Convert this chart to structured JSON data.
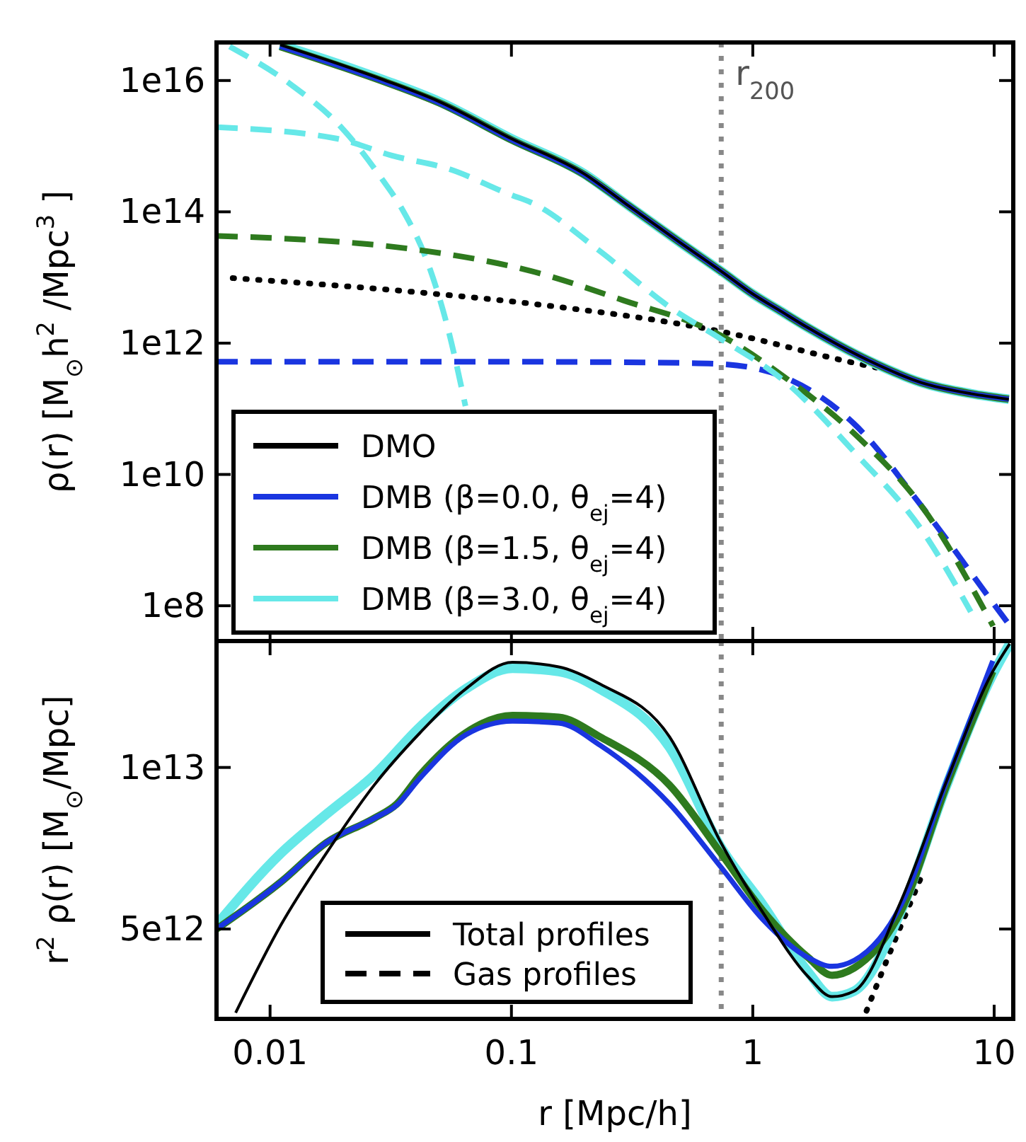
{
  "chart_data": [
    {
      "type": "line",
      "ylabel": "ρ(r)  [M$_{⊙}$h$^{2}$ /Mpc$^{3}$ ]",
      "log": "xy",
      "xlim": [
        0.006,
        12
      ],
      "ylim": [
        29000000.0,
        3.8e+16
      ],
      "xticks": [
        0.01,
        0.1,
        1,
        10
      ],
      "yticks": [
        {
          "value": 100000000.0,
          "label": "1e8"
        },
        {
          "value": 10000000000.0,
          "label": "1e10"
        },
        {
          "value": 1000000000000.0,
          "label": "1e12"
        },
        {
          "value": 100000000000000.0,
          "label": "1e14"
        },
        {
          "value": 1e+16,
          "label": "1e16"
        }
      ],
      "tick_labels": "y",
      "legend": "bottom left",
      "grid": false,
      "ref_lines": [
        {
          "axis": "x",
          "value": 0.74,
          "label": "r$_{200}$",
          "color": "#888888",
          "line_style": "dotted"
        }
      ],
      "series": [
        {
          "color": "#000000",
          "line_style": "dotted",
          "x": [
            0.007,
            0.042,
            0.12,
            0.74,
            2.63,
            3.9
          ],
          "values": [
            9800000000000.0,
            5900000000000.0,
            4000000000000.0,
            1500000000000.0,
            500000000000.0,
            370000000000.0
          ]
        },
        {
          "color": "#66e8e8",
          "line_style": "dashed",
          "x": [
            0.0068,
            0.0122,
            0.0197,
            0.0292,
            0.035,
            0.0458,
            0.0545,
            0.0645
          ],
          "values": [
            3.3e+16,
            8700000000000000.0,
            1950000000000000.0,
            310000000000000.0,
            115000000000000.0,
            14000000000000.0,
            1700000000000.0,
            110000000000.0
          ]
        },
        {
          "color": "#1a35e0",
          "line_style": "dashed",
          "x": [
            0.006,
            0.1,
            0.5,
            0.74,
            1.36,
            2.63,
            5.1,
            9.9,
            11.6
          ],
          "values": [
            520000000000.0,
            520000000000.0,
            500000000000.0,
            480000000000.0,
            300000000000.0,
            59000000000.0,
            3000000000.0,
            110000000.0,
            50000000.0
          ]
        },
        {
          "color": "#2e7a1e",
          "line_style": "dashed",
          "x": [
            0.006,
            0.042,
            0.12,
            0.29,
            0.74,
            1.36,
            2.63,
            5.1,
            9.9
          ],
          "values": [
            43000000000000.0,
            26000000000000.0,
            12600000000000.0,
            4500000000000.0,
            1300000000000.0,
            300000000000.0,
            42000000000.0,
            3000000000.0,
            49000000.0
          ]
        },
        {
          "color": "#66e8e8",
          "line_style": "dashed",
          "x": [
            0.006,
            0.019,
            0.032,
            0.055,
            0.1,
            0.12,
            0.23,
            0.45,
            0.74,
            1.36,
            2.63,
            5.1,
            8
          ],
          "values": [
            1950000000000000.0,
            1300000000000000.0,
            720000000000000.0,
            450000000000000.0,
            180000000000000.0,
            140000000000000.0,
            26000000000000.0,
            3600000000000.0,
            1150000000000.0,
            260000000000.0,
            22000000000.0,
            1300000000.0,
            81000000.0
          ]
        },
        {
          "name": "DMO",
          "color": "#000000",
          "line_style": "solid",
          "x": [
            0.011,
            0.02,
            0.03,
            0.05,
            0.1,
            0.2,
            0.3,
            0.5,
            0.75,
            1,
            1.3,
            1.7,
            3,
            5,
            8,
            11.5
          ],
          "values": [
            3.5e+16,
            1.7e+16,
            1e+16,
            4800000000000000.0,
            1300000000000000.0,
            380000000000000.0,
            130000000000000.0,
            34000000000000.0,
            12000000000000.0,
            5600000000000.0,
            3100000000000.0,
            1700000000000.0,
            550000000000.0,
            250000000000.0,
            170000000000.0,
            140000000000.0
          ]
        },
        {
          "name": "DMB (β=0.0, θ$_{ej}$=4)",
          "color": "#1a35e0",
          "line_style": "solid",
          "x": [
            0.011,
            0.02,
            0.03,
            0.05,
            0.1,
            0.2,
            0.3,
            0.5,
            0.75,
            1,
            1.3,
            1.7,
            3,
            5,
            8,
            11.5
          ],
          "values": [
            3.3e+16,
            1.6e+16,
            9500000000000000.0,
            4600000000000000.0,
            1250000000000000.0,
            370000000000000.0,
            130000000000000.0,
            34000000000000.0,
            12000000000000.0,
            5600000000000.0,
            3100000000000.0,
            1700000000000.0,
            550000000000.0,
            250000000000.0,
            170000000000.0,
            140000000000.0
          ]
        },
        {
          "name": "DMB (β=1.5, θ$_{ej}$=4)",
          "color": "#2e7a1e",
          "line_style": "solid",
          "x": [
            0.011,
            0.02,
            0.03,
            0.05,
            0.1,
            0.2,
            0.3,
            0.5,
            0.75,
            1,
            1.3,
            1.7,
            3,
            5,
            8,
            11.5
          ],
          "values": [
            3.3e+16,
            1.6e+16,
            9500000000000000.0,
            4600000000000000.0,
            1250000000000000.0,
            370000000000000.0,
            130000000000000.0,
            34000000000000.0,
            12000000000000.0,
            5600000000000.0,
            3100000000000.0,
            1700000000000.0,
            550000000000.0,
            250000000000.0,
            170000000000.0,
            140000000000.0
          ]
        },
        {
          "name": "DMB (β=3.0, θ$_{ej}$=4)",
          "color": "#66e8e8",
          "line_style": "solid",
          "x": [
            0.011,
            0.02,
            0.03,
            0.05,
            0.1,
            0.2,
            0.3,
            0.5,
            0.75,
            1,
            1.3,
            1.7,
            3,
            5,
            8,
            11.5
          ],
          "values": [
            3.5e+16,
            1.7e+16,
            1e+16,
            4800000000000000.0,
            1300000000000000.0,
            380000000000000.0,
            130000000000000.0,
            34000000000000.0,
            12000000000000.0,
            5600000000000.0,
            3100000000000.0,
            1700000000000.0,
            550000000000.0,
            250000000000.0,
            170000000000.0,
            140000000000.0
          ]
        }
      ]
    },
    {
      "type": "line",
      "xlabel": "r  [Mpc/h]",
      "ylabel": "r$^{2}$ ρ(r)  [M$_{⊙}$/Mpc]",
      "log": "xy",
      "xlim": [
        0.006,
        12
      ],
      "ylim": [
        3400000000000.0,
        17200000000000.0
      ],
      "xticks": [
        0.01,
        0.1,
        1,
        10
      ],
      "yticks": [
        {
          "value": 5000000000000.0,
          "label": "5e12"
        },
        {
          "value": 10000000000000.0,
          "label": "1e13"
        }
      ],
      "grid": false,
      "annotations": [
        "Total profiles",
        "Gas profiles"
      ],
      "ref_lines": [
        {
          "axis": "x",
          "value": 0.74,
          "color": "#888888",
          "line_style": "dotted"
        }
      ],
      "series": [
        {
          "color": "#000000",
          "line_style": "dotted",
          "x": [
            2.96,
            3.9,
            5.1
          ],
          "values": [
            3520000000000.0,
            4790000000000.0,
            6400000000000.0
          ]
        },
        {
          "color": "#000000",
          "line_style": "solid",
          "x": [
            0.0072,
            0.0111,
            0.0171,
            0.027,
            0.0418,
            0.0646,
            0.101,
            0.157,
            0.233,
            0.452,
            0.738,
            1.1,
            1.7,
            2.13,
            2.63,
            4.12,
            6.36,
            9.87,
            11.6
          ],
          "values": [
            3490000000000.0,
            5090000000000.0,
            6920000000000.0,
            9270000000000.0,
            11600000000000.0,
            14000000000000.0,
            15700000000000.0,
            15400000000000.0,
            14300000000000.0,
            11400000000000.0,
            7240000000000.0,
            5370000000000.0,
            4070000000000.0,
            3740000000000.0,
            3830000000000.0,
            5650000000000.0,
            9440000000000.0,
            15100000000000.0,
            17000000000000.0
          ]
        },
        {
          "color": "#1a35e0",
          "line_style": "solid",
          "x": [
            0.006,
            0.0111,
            0.0171,
            0.027,
            0.0335,
            0.0418,
            0.0646,
            0.101,
            0.157,
            0.233,
            0.452,
            0.738,
            1.1,
            1.7,
            2.13,
            2.63,
            4.12,
            6.36,
            9.87
          ],
          "values": [
            5000000000000.0,
            6120000000000.0,
            7240000000000.0,
            8040000000000.0,
            8510000000000.0,
            9550000000000.0,
            11500000000000.0,
            12200000000000.0,
            12100000000000.0,
            11000000000000.0,
            8550000000000.0,
            6520000000000.0,
            5210000000000.0,
            4420000000000.0,
            4260000000000.0,
            4370000000000.0,
            5550000000000.0,
            9440000000000.0,
            15800000000000.0
          ]
        },
        {
          "color": "#2e7a1e",
          "line_style": "solid",
          "x": [
            0.006,
            0.0111,
            0.0171,
            0.027,
            0.0335,
            0.0418,
            0.0646,
            0.101,
            0.157,
            0.233,
            0.452,
            0.738,
            1.1,
            1.7,
            2.13,
            2.63,
            4.12,
            6.36,
            9.87
          ],
          "values": [
            5000000000000.0,
            6120000000000.0,
            7240000000000.0,
            8040000000000.0,
            8550000000000.0,
            9680000000000.0,
            11600000000000.0,
            12500000000000.0,
            12400000000000.0,
            11400000000000.0,
            9270000000000.0,
            6920000000000.0,
            5410000000000.0,
            4420000000000.0,
            4100000000000.0,
            4230000000000.0,
            5410000000000.0,
            9270000000000.0,
            15100000000000.0
          ]
        },
        {
          "color": "#66e8e8",
          "line_style": "solid",
          "x": [
            0.006,
            0.0111,
            0.0171,
            0.027,
            0.0418,
            0.0646,
            0.101,
            0.157,
            0.233,
            0.452,
            0.738,
            1.1,
            1.7,
            2.13,
            2.63,
            4.12,
            6.36,
            9.87,
            11.6
          ],
          "values": [
            5090000000000.0,
            6920000000000.0,
            8180000000000.0,
            9680000000000.0,
            11900000000000.0,
            14000000000000.0,
            15300000000000.0,
            15100000000000.0,
            14000000000000.0,
            10900000000000.0,
            7100000000000.0,
            5550000000000.0,
            4150000000000.0,
            3740000000000.0,
            3830000000000.0,
            5410000000000.0,
            9270000000000.0,
            14900000000000.0,
            17000000000000.0
          ]
        }
      ]
    }
  ]
}
